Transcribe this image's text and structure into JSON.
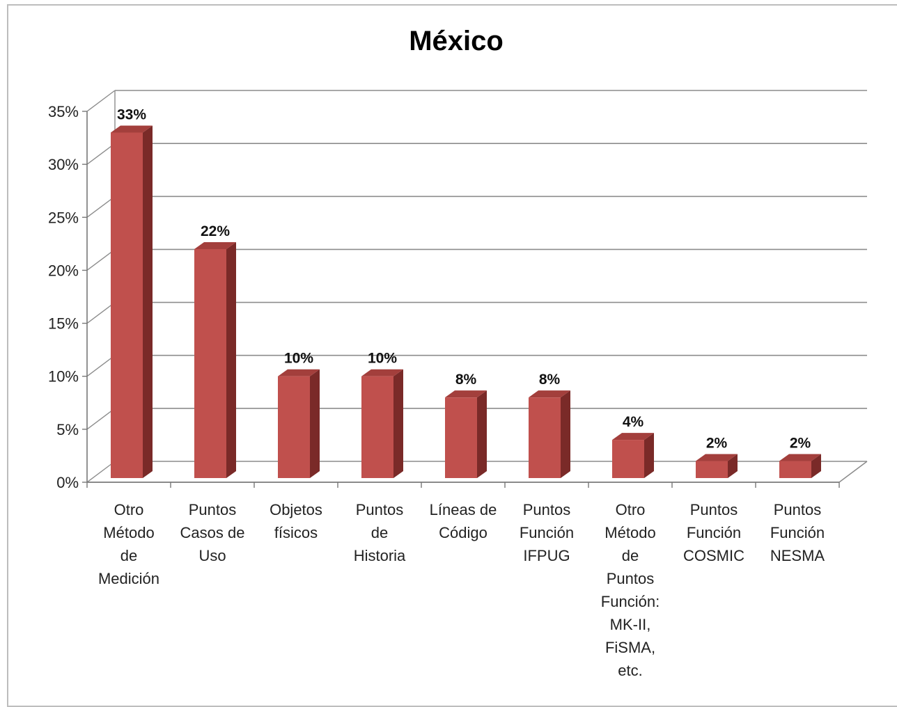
{
  "chart_data": {
    "type": "bar",
    "title": "México",
    "categories": [
      [
        "Otro",
        "Método",
        "de",
        "Medición"
      ],
      [
        "Puntos",
        "Casos de",
        "Uso"
      ],
      [
        "Objetos",
        "físicos"
      ],
      [
        "Puntos",
        "de",
        "Historia"
      ],
      [
        "Líneas de",
        "Código"
      ],
      [
        "Puntos",
        "Función",
        "IFPUG"
      ],
      [
        "Otro",
        "Método",
        "de",
        "Puntos",
        "Función:",
        "MK-II,",
        "FiSMA,",
        "etc."
      ],
      [
        "Puntos",
        "Función",
        "COSMIC"
      ],
      [
        "Puntos",
        "Función",
        "NESMA"
      ]
    ],
    "values": [
      33,
      22,
      10,
      10,
      8,
      8,
      4,
      2,
      2
    ],
    "data_labels": [
      "33%",
      "22%",
      "10%",
      "10%",
      "8%",
      "8%",
      "4%",
      "2%",
      "2%"
    ],
    "yticks": [
      "0%",
      "5%",
      "10%",
      "15%",
      "20%",
      "25%",
      "30%",
      "35%"
    ],
    "ylim": [
      0,
      35
    ],
    "grid": true,
    "legend": "none",
    "colors": {
      "front": "#c0504d",
      "side": "#7a2a28",
      "top": "#a33f3c",
      "grid": "#8c8c8c"
    }
  }
}
